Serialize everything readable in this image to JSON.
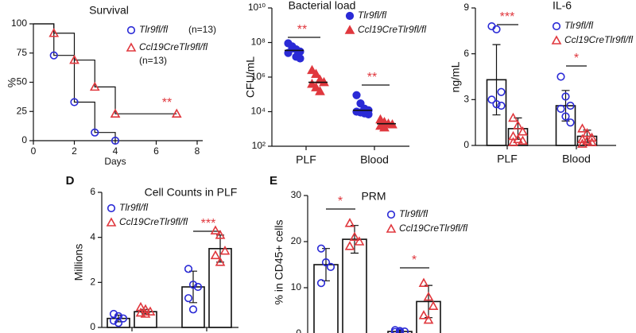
{
  "chart_data": [
    {
      "type": "line",
      "step": true,
      "title": "Survival",
      "xlabel": "Days",
      "ylabel": "%",
      "xlim": [
        0,
        8
      ],
      "xticks": [
        0,
        2,
        4,
        6,
        8
      ],
      "ylim": [
        0,
        100
      ],
      "yticks": [
        0,
        25,
        50,
        75,
        100
      ],
      "series": [
        {
          "name": "Tlr9fl/fl",
          "n": "(n=13)",
          "color": "#2a2ad6",
          "marker": "circle",
          "x": [
            0,
            1,
            2,
            3,
            4
          ],
          "values": [
            100,
            73,
            33,
            7,
            0
          ]
        },
        {
          "name": "Ccl19CreTlr9fl/fl",
          "n": "(n=13)",
          "color": "#e0383e",
          "marker": "triangle",
          "x": [
            0,
            1,
            2,
            3,
            4,
            7
          ],
          "values": [
            100,
            92,
            69,
            46,
            23,
            23
          ]
        }
      ],
      "annotations": [
        "**"
      ]
    },
    {
      "type": "scatter",
      "title": "Bacterial load",
      "ylabel": "CFU/mL",
      "log_scale": true,
      "ylim": [
        100,
        10000000000
      ],
      "yticks": [
        {
          "value": 100,
          "label": "10²"
        },
        {
          "value": 10000,
          "label": "10⁴"
        },
        {
          "value": 1000000,
          "label": "10⁶"
        },
        {
          "value": 100000000,
          "label": "10⁸"
        },
        {
          "value": 10000000000,
          "label": "10¹⁰"
        }
      ],
      "categories": [
        "PLF",
        "Blood"
      ],
      "series": [
        {
          "name": "Tlr9fl/fl",
          "color": "#2a2ad6",
          "marker": "circle",
          "filled": true,
          "points": [
            [
              90000000,
              60000000,
              40000000,
              30000000,
              25000000,
              45000000,
              15000000,
              12000000
            ],
            [
              90000,
              30000,
              15000,
              12000,
              10000,
              9000,
              8000,
              7000
            ]
          ],
          "medians": [
            35000000,
            12000
          ]
        },
        {
          "name": "Ccl19CreTlr9fl/fl",
          "color": "#e0383e",
          "marker": "triangle",
          "filled": true,
          "points": [
            [
              2500000,
              1500000,
              700000,
              500000,
              400000,
              250000,
              150000
            ],
            [
              3500,
              2500,
              2000,
              1800,
              1500,
              1200
            ]
          ],
          "medians": [
            500000,
            2000
          ]
        }
      ],
      "annotations": [
        "**",
        "**"
      ]
    },
    {
      "type": "bar",
      "title": "IL-6",
      "ylabel": "ng/mL",
      "ylim": [
        0,
        9
      ],
      "yticks": [
        0,
        3,
        6,
        9
      ],
      "categories": [
        "PLF",
        "Blood"
      ],
      "series": [
        {
          "name": "Tlr9fl/fl",
          "color": "#2a2ad6",
          "marker": "circle",
          "values": [
            4.3,
            2.6
          ],
          "errors": [
            2.3,
            1.0
          ],
          "points": [
            [
              7.8,
              7.6,
              3.5,
              3.0,
              2.7,
              2.6
            ],
            [
              4.5,
              3.2,
              2.6,
              2.4,
              1.9,
              1.5
            ]
          ]
        },
        {
          "name": "Ccl19CreTlr9fl/fl",
          "color": "#e0383e",
          "marker": "triangle",
          "values": [
            1.1,
            0.6
          ],
          "errors": [
            0.7,
            0.4
          ],
          "points": [
            [
              1.8,
              1.3,
              0.9,
              0.6,
              0.4,
              0.3,
              0.2
            ],
            [
              1.1,
              0.8,
              0.5,
              0.4,
              0.3,
              0.2,
              0.1
            ]
          ]
        }
      ],
      "annotations": [
        "***",
        "*"
      ]
    },
    {
      "type": "bar",
      "panel_label": "D",
      "title": "Cell Counts in PLF",
      "ylabel": "Millions",
      "ylim": [
        0,
        6
      ],
      "yticks": [
        0,
        2,
        4,
        6
      ],
      "categories": [
        null,
        null
      ],
      "series": [
        {
          "name": "Tlr9fl/fl",
          "color": "#2a2ad6",
          "marker": "circle",
          "values": [
            0.4,
            1.8
          ],
          "errors": [
            0.15,
            0.7
          ],
          "points": [
            [
              0.6,
              0.5,
              0.4,
              0.3,
              0.2
            ],
            [
              2.6,
              1.9,
              1.8,
              1.3,
              0.8
            ]
          ]
        },
        {
          "name": "Ccl19CreTlr9fl/fl",
          "color": "#e0383e",
          "marker": "triangle",
          "values": [
            0.7,
            3.5
          ],
          "errors": [
            0.1,
            0.6
          ],
          "points": [
            [
              0.9,
              0.8,
              0.7,
              0.65,
              0.6
            ],
            [
              4.3,
              4.1,
              3.4,
              3.2,
              2.9
            ]
          ]
        }
      ],
      "annotations": [
        "***"
      ]
    },
    {
      "type": "bar",
      "panel_label": "E",
      "title": "PRM",
      "ylabel": "% in CD45+ cells",
      "ylim": [
        0,
        30
      ],
      "yticks": [
        0,
        10,
        20,
        30
      ],
      "categories": [
        null,
        null
      ],
      "series": [
        {
          "name": "Tlr9fl/fl",
          "color": "#2a2ad6",
          "marker": "circle",
          "values": [
            15,
            0.5
          ],
          "errors": [
            3.5,
            0.3
          ],
          "points": [
            [
              18.5,
              15.5,
              14.5,
              11
            ],
            [
              0.8,
              0.6,
              0.5,
              0.4,
              0.3
            ]
          ]
        },
        {
          "name": "Ccl19CreTlr9fl/fl",
          "color": "#e0383e",
          "marker": "triangle",
          "values": [
            20.5,
            7
          ],
          "errors": [
            3,
            3.5
          ],
          "points": [
            [
              24,
              21,
              20,
              19
            ],
            [
              11,
              8,
              6,
              4,
              3
            ]
          ]
        }
      ],
      "annotations": [
        "*",
        "*"
      ]
    }
  ]
}
